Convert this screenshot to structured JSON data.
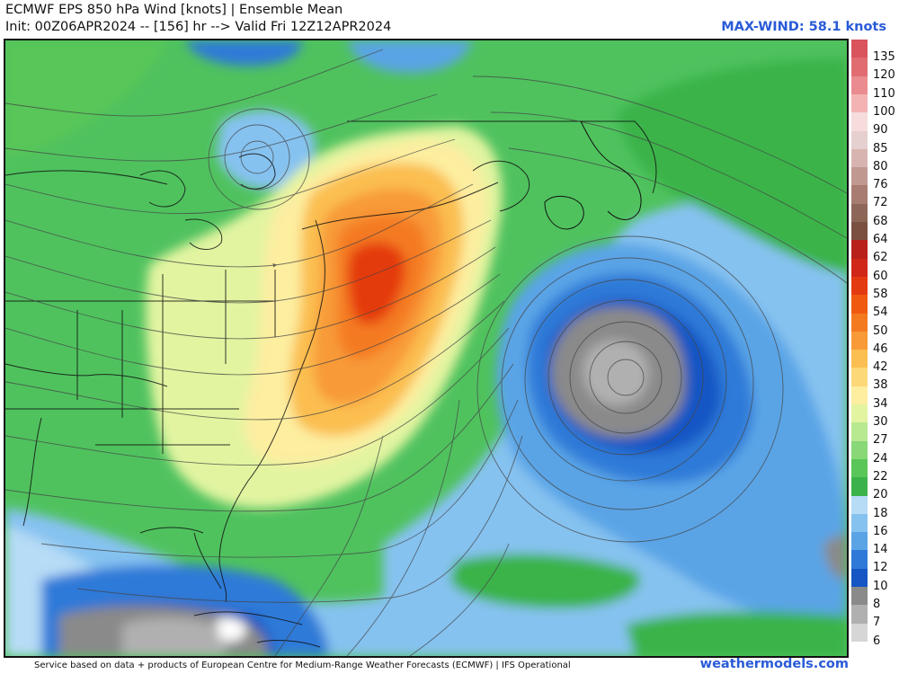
{
  "header": {
    "title_line1": "ECMWF EPS 850 hPa Wind [knots] | Ensemble Mean",
    "title_line2": "Init: 00Z06APR2024 -- [156] hr --> Valid Fri 12Z12APR2024",
    "max_wind": "MAX-WIND: 58.1 knots"
  },
  "footer": {
    "credit": "Service based on data + products of European Centre for Medium-Range Weather Forecasts (ECMWF) | IFS Operational",
    "site": "weathermodels.com"
  },
  "legend": {
    "levels": [
      {
        "label": "135",
        "color": "#d9545c"
      },
      {
        "label": "120",
        "color": "#e06c71"
      },
      {
        "label": "110",
        "color": "#ea8c8f"
      },
      {
        "label": "100",
        "color": "#f4b3b3"
      },
      {
        "label": "90",
        "color": "#f6dcdc"
      },
      {
        "label": "85",
        "color": "#e6cfcf"
      },
      {
        "label": "80",
        "color": "#d8b4b0"
      },
      {
        "label": "76",
        "color": "#c09890"
      },
      {
        "label": "72",
        "color": "#a87c70"
      },
      {
        "label": "68",
        "color": "#8d6658"
      },
      {
        "label": "64",
        "color": "#7a5040"
      },
      {
        "label": "62",
        "color": "#b8201a"
      },
      {
        "label": "60",
        "color": "#d02818"
      },
      {
        "label": "58",
        "color": "#e43a10"
      },
      {
        "label": "54",
        "color": "#f05a10"
      },
      {
        "label": "50",
        "color": "#f47a20"
      },
      {
        "label": "46",
        "color": "#f89a38"
      },
      {
        "label": "42",
        "color": "#fbbe50"
      },
      {
        "label": "38",
        "color": "#fdd878"
      },
      {
        "label": "34",
        "color": "#fdeea0"
      },
      {
        "label": "30",
        "color": "#e2f4a0"
      },
      {
        "label": "27",
        "color": "#b8e890"
      },
      {
        "label": "24",
        "color": "#88d878"
      },
      {
        "label": "22",
        "color": "#58c658"
      },
      {
        "label": "20",
        "color": "#3bb34a"
      },
      {
        "label": "18",
        "color": "#b6dcf6"
      },
      {
        "label": "16",
        "color": "#86c2f0"
      },
      {
        "label": "14",
        "color": "#5aa4e6"
      },
      {
        "label": "12",
        "color": "#2f7ad8"
      },
      {
        "label": "10",
        "color": "#1656c4"
      },
      {
        "label": "8",
        "color": "#8a8a8a"
      },
      {
        "label": "7",
        "color": "#b0b0b0"
      },
      {
        "label": "6",
        "color": "#d6d6d6"
      }
    ]
  }
}
